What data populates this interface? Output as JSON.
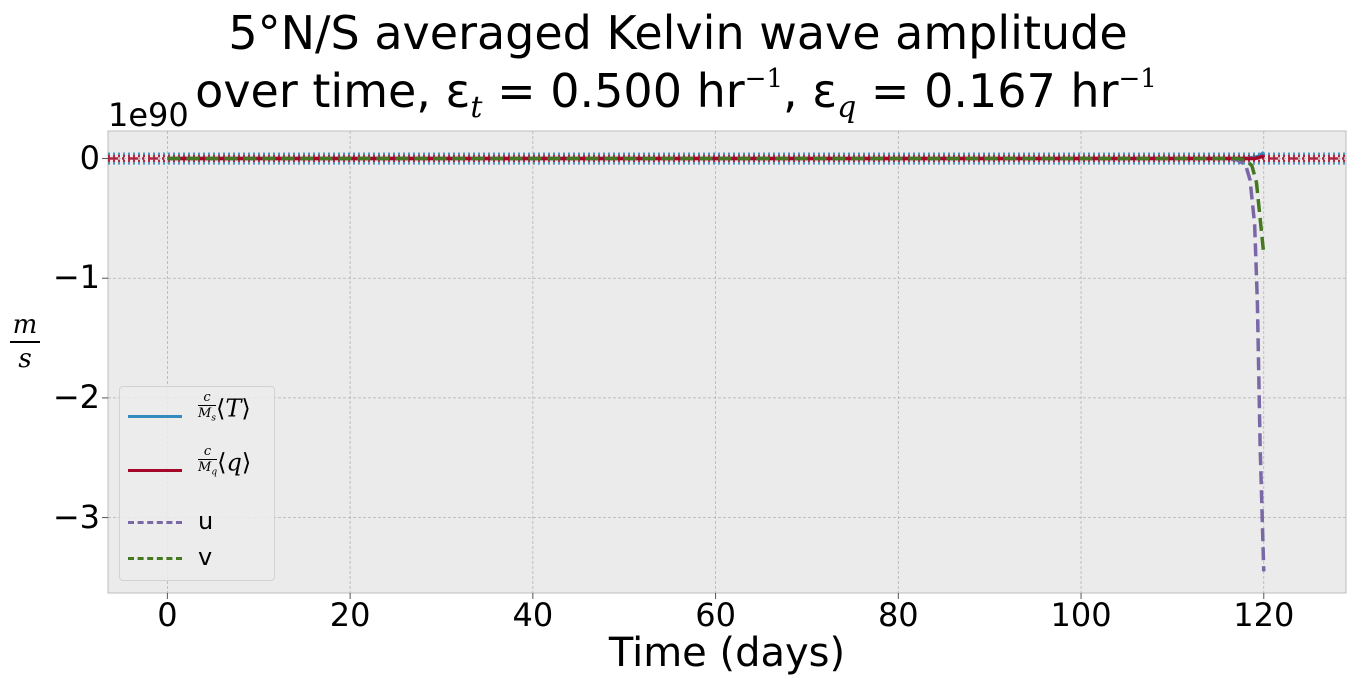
{
  "chart_data": {
    "type": "line",
    "title_line1": "5°N/S averaged Kelvin wave amplitude",
    "title_line2": {
      "prefix": "over time, ε",
      "eps_t_sub": "t",
      "eps_t_value": " = 0.500 hr",
      "sup1": "−1",
      "sep": ",  ε",
      "eps_q_sub": "q",
      "eps_q_value": " = 0.167 hr",
      "sup2": "−1"
    },
    "xlabel": "Time (days)",
    "ylabel": {
      "num": "m",
      "den": "s"
    },
    "y_offset_text": "1e90",
    "xlim": [
      -6.5,
      129
    ],
    "ylim": [
      -3.63,
      0.23
    ],
    "xticks": [
      0,
      20,
      40,
      60,
      80,
      100,
      120
    ],
    "xtick_labels": [
      "0",
      "20",
      "40",
      "60",
      "80",
      "100",
      "120"
    ],
    "yticks": [
      0,
      -1,
      -2,
      -3
    ],
    "ytick_labels": [
      "0",
      "−1",
      "−2",
      "−3"
    ],
    "grid": true,
    "legend_position": "lower-left",
    "hlines": [
      {
        "y": 0.04,
        "style": "dotted",
        "color": "#348ABD"
      },
      {
        "y": -0.04,
        "style": "dotted",
        "color": "#348ABD"
      },
      {
        "y": 0.02,
        "style": "dotted",
        "color": "#A60628"
      },
      {
        "y": -0.02,
        "style": "dotted",
        "color": "#A60628"
      },
      {
        "y": 0.0,
        "style": "dashdot",
        "color": "#A60628"
      }
    ],
    "series": [
      {
        "name": "c/M_s ⟨T⟩",
        "legend_parts": {
          "num": "c",
          "den": "M",
          "den_sub": "s",
          "var": "T"
        },
        "color": "#348ABD",
        "style": "solid",
        "x": [
          0,
          20,
          40,
          60,
          80,
          100,
          110,
          115,
          117,
          118,
          119,
          119.5,
          120
        ],
        "y": [
          0,
          0,
          0,
          0,
          0,
          0,
          0,
          0,
          0,
          0,
          0.01,
          0.02,
          0.05
        ]
      },
      {
        "name": "c/M_q ⟨q⟩",
        "legend_parts": {
          "num": "c",
          "den": "M",
          "den_sub": "q",
          "var": "q"
        },
        "color": "#A60628",
        "style": "solid",
        "x": [
          0,
          20,
          40,
          60,
          80,
          100,
          110,
          115,
          117,
          118,
          119,
          119.5,
          120
        ],
        "y": [
          0,
          0,
          0,
          0,
          0,
          0,
          0,
          0,
          0,
          0,
          0.0,
          0.01,
          0.02
        ]
      },
      {
        "name": "u",
        "legend_parts": {
          "plain": "u"
        },
        "color": "#7A68A6",
        "style": "dashed",
        "x": [
          0,
          20,
          40,
          60,
          80,
          100,
          110,
          115,
          117,
          118,
          118.5,
          119,
          119.3,
          119.6,
          120
        ],
        "y": [
          0,
          0,
          0,
          0,
          0,
          0,
          0,
          0,
          -0.01,
          -0.05,
          -0.18,
          -0.55,
          -1.2,
          -2.4,
          -3.45
        ]
      },
      {
        "name": "v",
        "legend_parts": {
          "plain": "v"
        },
        "color": "#467821",
        "style": "dashed",
        "x": [
          0,
          20,
          40,
          60,
          80,
          100,
          110,
          115,
          117,
          118,
          118.7,
          119.2,
          119.6,
          120
        ],
        "y": [
          0,
          0,
          0,
          0,
          0,
          0,
          0,
          0,
          0,
          -0.01,
          -0.06,
          -0.2,
          -0.5,
          -0.8
        ]
      }
    ]
  }
}
